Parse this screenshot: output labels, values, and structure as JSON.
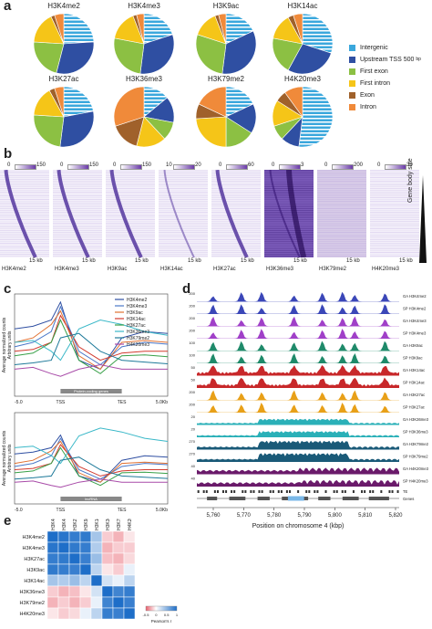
{
  "panel_labels": {
    "a": "a",
    "b": "b",
    "c": "c",
    "d": "d",
    "e": "e"
  },
  "panel_a": {
    "pies": [
      {
        "title": "H3K4me2",
        "slices": [
          {
            "cat": "Intergenic",
            "v": 24
          },
          {
            "cat": "Upstream",
            "v": 30
          },
          {
            "cat": "First exon",
            "v": 22
          },
          {
            "cat": "First intron",
            "v": 17
          },
          {
            "cat": "Exon",
            "v": 2
          },
          {
            "cat": "Intron",
            "v": 5
          }
        ]
      },
      {
        "title": "H3K4me3",
        "slices": [
          {
            "cat": "Intergenic",
            "v": 20
          },
          {
            "cat": "Upstream",
            "v": 32
          },
          {
            "cat": "First exon",
            "v": 26
          },
          {
            "cat": "First intron",
            "v": 16
          },
          {
            "cat": "Exon",
            "v": 2
          },
          {
            "cat": "Intron",
            "v": 4
          }
        ]
      },
      {
        "title": "H3K9ac",
        "slices": [
          {
            "cat": "Intergenic",
            "v": 18
          },
          {
            "cat": "Upstream",
            "v": 34
          },
          {
            "cat": "First exon",
            "v": 28
          },
          {
            "cat": "First intron",
            "v": 14
          },
          {
            "cat": "Exon",
            "v": 2
          },
          {
            "cat": "Intron",
            "v": 4
          }
        ]
      },
      {
        "title": "H3K14ac",
        "slices": [
          {
            "cat": "Intergenic",
            "v": 30
          },
          {
            "cat": "Upstream",
            "v": 28
          },
          {
            "cat": "First exon",
            "v": 20
          },
          {
            "cat": "First intron",
            "v": 14
          },
          {
            "cat": "Exon",
            "v": 3
          },
          {
            "cat": "Intron",
            "v": 5
          }
        ]
      },
      {
        "title": "H3K27ac",
        "slices": [
          {
            "cat": "Intergenic",
            "v": 22
          },
          {
            "cat": "Upstream",
            "v": 30
          },
          {
            "cat": "First exon",
            "v": 24
          },
          {
            "cat": "First intron",
            "v": 16
          },
          {
            "cat": "Exon",
            "v": 3
          },
          {
            "cat": "Intron",
            "v": 5
          }
        ]
      },
      {
        "title": "H3K36me3",
        "slices": [
          {
            "cat": "Intergenic",
            "v": 14
          },
          {
            "cat": "Upstream",
            "v": 14
          },
          {
            "cat": "First exon",
            "v": 10
          },
          {
            "cat": "First intron",
            "v": 16
          },
          {
            "cat": "Exon",
            "v": 16
          },
          {
            "cat": "Intron",
            "v": 30
          }
        ]
      },
      {
        "title": "H3K79me2",
        "slices": [
          {
            "cat": "Intergenic",
            "v": 18
          },
          {
            "cat": "Upstream",
            "v": 16
          },
          {
            "cat": "First exon",
            "v": 16
          },
          {
            "cat": "First intron",
            "v": 24
          },
          {
            "cat": "Exon",
            "v": 8
          },
          {
            "cat": "Intron",
            "v": 18
          }
        ]
      },
      {
        "title": "H4K20me3",
        "slices": [
          {
            "cat": "Intergenic",
            "v": 52
          },
          {
            "cat": "Upstream",
            "v": 10
          },
          {
            "cat": "First exon",
            "v": 8
          },
          {
            "cat": "First intron",
            "v": 14
          },
          {
            "cat": "Exon",
            "v": 6
          },
          {
            "cat": "Intron",
            "v": 10
          }
        ]
      }
    ],
    "legend": [
      {
        "label": "Intergenic",
        "color": "#3aa7dc"
      },
      {
        "label": "Upstream TSS 500",
        "sup": "bp",
        "color": "#2f4fa2"
      },
      {
        "label": "First exon",
        "color": "#8cc043"
      },
      {
        "label": "First intron",
        "color": "#f5c518"
      },
      {
        "label": "Exon",
        "color": "#a0612b"
      },
      {
        "label": "Intron",
        "color": "#f08a3a"
      }
    ]
  },
  "panel_b": {
    "heatmaps": [
      {
        "label": "H3K4me2",
        "min": "0",
        "max": "150"
      },
      {
        "label": "H3K4me3",
        "min": "0",
        "max": "150"
      },
      {
        "label": "H3K9ac",
        "min": "0",
        "max": "150"
      },
      {
        "label": "H3K14ac",
        "min": "10",
        "max": "20"
      },
      {
        "label": "H3K27ac",
        "min": "0",
        "max": "60"
      },
      {
        "label": "H3K36me3",
        "min": "0",
        "max": "3"
      },
      {
        "label": "H3K79me2",
        "min": "0",
        "max": "200"
      },
      {
        "label": "H4K20me3",
        "min": "0",
        "max": "30"
      }
    ],
    "kb_label": "15 kb",
    "side_label": "Gene body size"
  },
  "panel_c": {
    "ylabel_top": "Average normalized counts",
    "ylabel_sub": "Arbitrary units",
    "xticks": [
      "-5.0",
      "TSS",
      "TES",
      "5.0Kb"
    ],
    "gene_label_top": "Protein-coding genes",
    "gene_label_bottom": "lncRNA",
    "legend": [
      {
        "label": "H3K4me2",
        "color": "#2f4fa2"
      },
      {
        "label": "H3K4me3",
        "color": "#4a78c8"
      },
      {
        "label": "H3K9ac",
        "color": "#e07030"
      },
      {
        "label": "H3K14ac",
        "color": "#d23a2e"
      },
      {
        "label": "H3K27ac",
        "color": "#38a048"
      },
      {
        "label": "H3K36me3",
        "color": "#3ab8c8"
      },
      {
        "label": "H3K79me2",
        "color": "#1f7a9a"
      },
      {
        "label": "H4K20me3",
        "color": "#a84aa8"
      }
    ]
  },
  "panel_d": {
    "tracks": [
      {
        "label": "GA H3K4me2",
        "scale": "200",
        "color": "#3b47b8"
      },
      {
        "label": "SP H3K4me2",
        "scale": "200",
        "color": "#3b47b8"
      },
      {
        "label": "GA H3K4me3",
        "scale": "200",
        "color": "#a040c8"
      },
      {
        "label": "SP H3K4me3",
        "scale": "200",
        "color": "#a040c8"
      },
      {
        "label": "GA H3K9ac",
        "scale": "100",
        "color": "#1f8a6a"
      },
      {
        "label": "SP H3K9ac",
        "scale": "100",
        "color": "#1f8a6a"
      },
      {
        "label": "GA H3K14ac",
        "scale": "50",
        "color": "#c8282a"
      },
      {
        "label": "SP H3K14ac",
        "scale": "50",
        "color": "#c8282a"
      },
      {
        "label": "GA H3K27ac",
        "scale": "200",
        "color": "#e8a018"
      },
      {
        "label": "SP H3K27ac",
        "scale": "200",
        "color": "#e8a018"
      },
      {
        "label": "GA H3K36me3",
        "scale": "20",
        "color": "#2ab0b8"
      },
      {
        "label": "SP H3K36me3",
        "scale": "20",
        "color": "#2ab0b8"
      },
      {
        "label": "GA H3K79me2",
        "scale": "270",
        "color": "#1a5a78"
      },
      {
        "label": "SP H3K79me2",
        "scale": "270",
        "color": "#1a5a78"
      },
      {
        "label": "GA H4K20me3",
        "scale": "40",
        "color": "#6a1a6a"
      },
      {
        "label": "SP H4K20me3",
        "scale": "40",
        "color": "#6a1a6a"
      }
    ],
    "te_label": "TE",
    "genes_label": "Genes",
    "xticks": [
      "5,760",
      "5,770",
      "5,780",
      "5,790",
      "5,800",
      "5,810",
      "5,820"
    ],
    "xlabel": "Position on chromosome 4 (kbp)"
  },
  "panel_e": {
    "labels": [
      "H3K4me2",
      "H3K4me3",
      "H3K27ac",
      "H3K9ac",
      "H3K14ac",
      "H3K36me3",
      "H3K79me2",
      "H4K20me3"
    ],
    "matrix": [
      [
        1.0,
        0.95,
        0.9,
        0.92,
        0.4,
        -0.2,
        -0.3,
        -0.1
      ],
      [
        0.95,
        1.0,
        0.92,
        0.9,
        0.35,
        -0.3,
        -0.2,
        -0.2
      ],
      [
        0.9,
        0.92,
        1.0,
        0.88,
        0.45,
        -0.25,
        -0.3,
        -0.15
      ],
      [
        0.92,
        0.9,
        0.88,
        1.0,
        0.3,
        -0.1,
        -0.2,
        0.1
      ],
      [
        0.4,
        0.35,
        0.45,
        0.3,
        1.0,
        0.2,
        0.1,
        0.3
      ],
      [
        -0.2,
        -0.3,
        -0.25,
        -0.1,
        0.2,
        1.0,
        0.85,
        0.9
      ],
      [
        -0.3,
        -0.2,
        -0.3,
        -0.2,
        0.1,
        0.85,
        1.0,
        0.88
      ],
      [
        -0.1,
        -0.2,
        -0.15,
        0.1,
        0.3,
        0.9,
        0.88,
        1.0
      ]
    ],
    "scale_ticks": [
      "-0.5",
      "0",
      "0.5",
      "1"
    ],
    "scale_label": "Pearson's r"
  }
}
